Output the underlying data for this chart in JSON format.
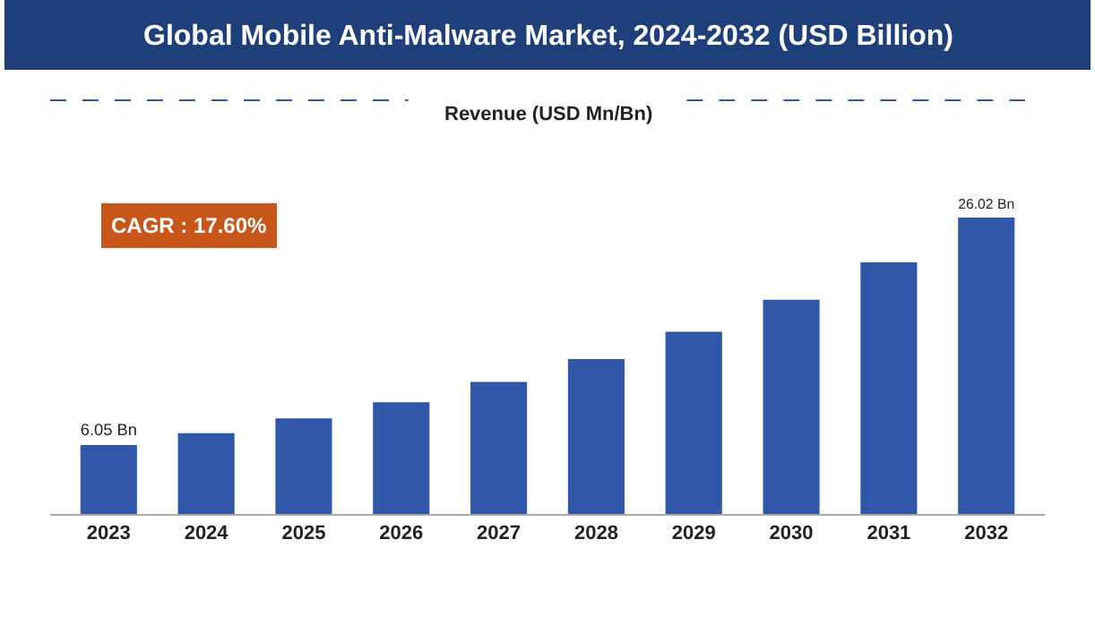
{
  "chart_data": {
    "type": "bar",
    "title": "Global Mobile Anti-Malware Market, 2024-2032 (USD Billion)",
    "subtitle": "Revenue (USD Mn/Bn)",
    "categories": [
      "2023",
      "2024",
      "2025",
      "2026",
      "2027",
      "2028",
      "2029",
      "2030",
      "2031",
      "2032"
    ],
    "values": [
      6.05,
      7.1,
      8.4,
      9.8,
      11.6,
      13.6,
      16.0,
      18.8,
      22.1,
      26.02
    ],
    "value_labels": [
      "6.05 Bn",
      null,
      null,
      null,
      null,
      null,
      null,
      null,
      null,
      "26.02 Bn"
    ],
    "color": "#3057a8",
    "annotations": [
      "CAGR : 17.60%"
    ],
    "legend": false
  }
}
